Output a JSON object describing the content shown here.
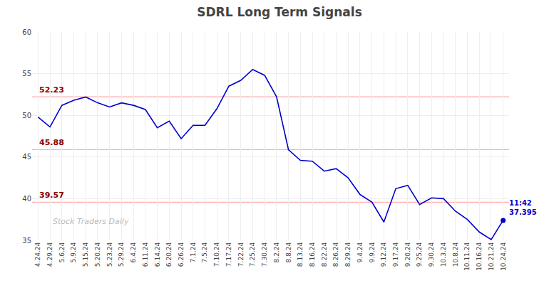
{
  "chart_data": {
    "type": "line",
    "title": "SDRL Long Term Signals",
    "categories": [
      "4.24.24",
      "4.29.24",
      "5.6.24",
      "5.9.24",
      "5.15.24",
      "5.20.24",
      "5.23.24",
      "5.29.24",
      "6.4.24",
      "6.11.24",
      "6.14.24",
      "6.20.24",
      "6.26.24",
      "7.1.24",
      "7.5.24",
      "7.10.24",
      "7.17.24",
      "7.22.24",
      "7.25.24",
      "7.30.24",
      "8.2.24",
      "8.8.24",
      "8.13.24",
      "8.16.24",
      "8.22.24",
      "8.26.24",
      "8.29.24",
      "9.4.24",
      "9.9.24",
      "9.12.24",
      "9.17.24",
      "9.20.24",
      "9.25.24",
      "9.30.24",
      "10.3.24",
      "10.8.24",
      "10.11.24",
      "10.16.24",
      "10.21.24",
      "10.24.24"
    ],
    "values": [
      49.8,
      48.6,
      51.2,
      51.8,
      52.2,
      51.5,
      51.0,
      51.5,
      51.2,
      50.7,
      48.5,
      49.3,
      47.2,
      48.8,
      48.8,
      50.8,
      53.5,
      54.2,
      55.5,
      54.8,
      52.23,
      45.88,
      44.6,
      44.5,
      43.3,
      43.6,
      42.5,
      40.5,
      39.57,
      37.2,
      41.2,
      41.6,
      39.3,
      40.1,
      40.0,
      38.5,
      37.5,
      36.0,
      35.1,
      37.395
    ],
    "color": "#0000CC",
    "ylim": [
      35,
      60
    ],
    "yticks": [
      35,
      40,
      45,
      50,
      55,
      60
    ],
    "grid": true,
    "hlines": [
      {
        "value": 52.23,
        "label": "52.23",
        "color": "#ffaaaa",
        "label_color": "#8B0000"
      },
      {
        "value": 45.88,
        "label": "45.88",
        "color": "#ffaaaa",
        "label_color": "#8B0000"
      },
      {
        "value": 39.57,
        "label": "39.57",
        "color": "#ffaaaa",
        "label_color": "#8B0000"
      }
    ],
    "end_annotation": {
      "text": "11:42\n37.395",
      "x": "10.24.24",
      "y": 37.395,
      "color": "#0000CC"
    },
    "watermark": "Stock Traders Daily",
    "watermark_color": "#bbbbbb"
  }
}
